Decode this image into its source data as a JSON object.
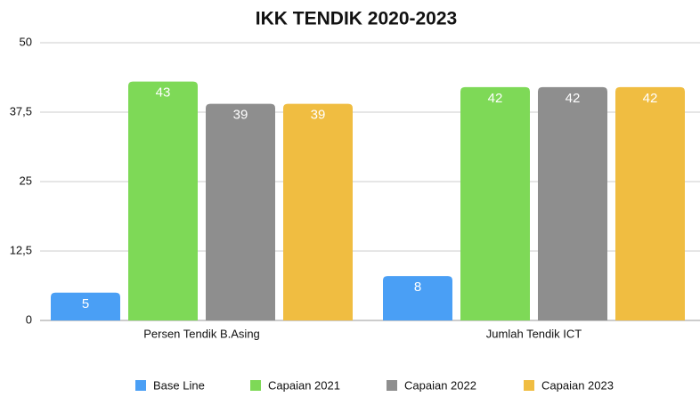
{
  "chart_data": {
    "type": "bar",
    "title": "IKK TENDIK 2020-2023",
    "categories": [
      "Persen Tendik B.Asing",
      "Jumlah Tendik ICT"
    ],
    "series": [
      {
        "name": "Base Line",
        "color": "#4a9ff5",
        "values": [
          5,
          8
        ]
      },
      {
        "name": "Capaian 2021",
        "color": "#7ed957",
        "values": [
          43,
          42
        ]
      },
      {
        "name": "Capaian 2022",
        "color": "#8e8e8e",
        "values": [
          39,
          42
        ]
      },
      {
        "name": "Capaian 2023",
        "color": "#f0bd41",
        "values": [
          39,
          42
        ]
      }
    ],
    "ylim": [
      0,
      50
    ],
    "yticks": [
      0,
      {
        "value": 12.5,
        "label": "12,5"
      },
      25,
      {
        "value": 37.5,
        "label": "37,5"
      },
      50
    ],
    "grid": true,
    "legend": "bottom"
  }
}
